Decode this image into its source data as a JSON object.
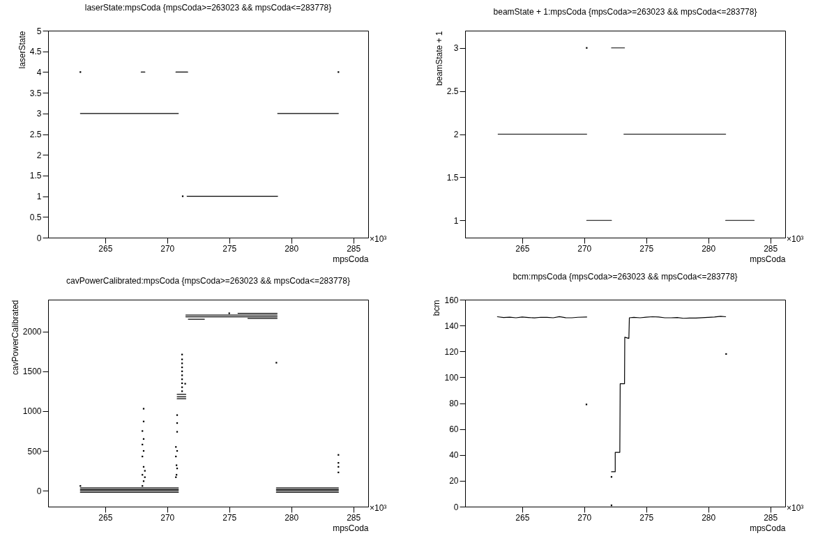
{
  "chart_data": [
    {
      "type": "scatter",
      "title": "laserState:mpsCoda {mpsCoda>=263023 && mpsCoda<=283778}",
      "xlabel": "mpsCoda",
      "ylabel": "laserState",
      "xlim": [
        260.4,
        286.2
      ],
      "xticks": [
        265,
        270,
        275,
        280,
        285
      ],
      "ylim": [
        0,
        5
      ],
      "yticks": [
        0,
        0.5,
        1,
        1.5,
        2,
        2.5,
        3,
        3.5,
        4,
        4.5,
        5
      ],
      "grid": false,
      "annotations": [
        "×10³"
      ],
      "series": [
        {
          "type": "line",
          "color": "#000000",
          "x": [
            263.0,
            270.9
          ],
          "values": [
            3,
            3
          ]
        },
        {
          "type": "line",
          "color": "#000000",
          "x": [
            267.9,
            268.2
          ],
          "values": [
            4,
            4
          ]
        },
        {
          "type": "line",
          "color": "#000000",
          "x": [
            270.7,
            271.65
          ],
          "values": [
            4,
            4
          ]
        },
        {
          "color": "#000000",
          "x": [
            271.25
          ],
          "values": [
            1
          ]
        },
        {
          "type": "line",
          "color": "#000000",
          "x": [
            271.6,
            278.9
          ],
          "values": [
            1,
            1
          ]
        },
        {
          "type": "line",
          "color": "#000000",
          "x": [
            278.9,
            283.8
          ],
          "values": [
            3,
            3
          ]
        },
        {
          "color": "#000000",
          "x": [
            263.0,
            283.8
          ],
          "values": [
            4,
            4
          ]
        }
      ]
    },
    {
      "type": "scatter",
      "title": "beamState + 1:mpsCoda {mpsCoda>=263023 && mpsCoda<=283778}",
      "xlabel": "mpsCoda",
      "ylabel": "beamState + 1",
      "xlim": [
        260.4,
        286.2
      ],
      "xticks": [
        265,
        270,
        275,
        280,
        285
      ],
      "ylim": [
        0.8,
        3.2
      ],
      "yticks": [
        1,
        1.5,
        2,
        2.5,
        3
      ],
      "grid": false,
      "annotations": [
        "×10³"
      ],
      "series": [
        {
          "type": "line",
          "color": "#000000",
          "x": [
            263.06,
            270.2
          ],
          "values": [
            2,
            2
          ]
        },
        {
          "type": "line",
          "color": "#000000",
          "x": [
            270.2,
            272.2
          ],
          "values": [
            1,
            1
          ]
        },
        {
          "type": "line",
          "color": "#000000",
          "x": [
            272.2,
            273.25
          ],
          "values": [
            3,
            3
          ]
        },
        {
          "type": "line",
          "color": "#000000",
          "x": [
            273.2,
            281.4
          ],
          "values": [
            2,
            2
          ]
        },
        {
          "type": "line",
          "color": "#000000",
          "x": [
            281.4,
            283.7
          ],
          "values": [
            1,
            1
          ]
        },
        {
          "color": "#000000",
          "x": [
            270.2
          ],
          "values": [
            3
          ]
        }
      ]
    },
    {
      "type": "scatter",
      "title": "cavPowerCalibrated:mpsCoda {mpsCoda>=263023 && mpsCoda<=283778}",
      "xlabel": "mpsCoda",
      "ylabel": "cavPowerCalibrated",
      "xlim": [
        260.4,
        286.2
      ],
      "xticks": [
        265,
        270,
        275,
        280,
        285
      ],
      "ylim": [
        -200,
        2400
      ],
      "yticks": [
        0,
        500,
        1000,
        1500,
        2000
      ],
      "grid": false,
      "annotations": [
        "×10³"
      ],
      "series": [
        {
          "type": "line",
          "color": "#000000",
          "x": [
            263.0,
            270.9
          ],
          "values": [
            35,
            35
          ]
        },
        {
          "type": "line",
          "color": "#000000",
          "x": [
            263.0,
            270.9
          ],
          "values": [
            15,
            15
          ]
        },
        {
          "type": "line",
          "color": "#000000",
          "x": [
            263.0,
            270.9
          ],
          "values": [
            0,
            0
          ]
        },
        {
          "type": "line",
          "color": "#000000",
          "x": [
            263.0,
            270.9
          ],
          "values": [
            -20,
            -20
          ]
        },
        {
          "type": "line",
          "color": "#000000",
          "x": [
            278.8,
            283.8
          ],
          "values": [
            35,
            35
          ]
        },
        {
          "type": "line",
          "color": "#000000",
          "x": [
            278.8,
            283.8
          ],
          "values": [
            15,
            15
          ]
        },
        {
          "type": "line",
          "color": "#000000",
          "x": [
            278.8,
            283.8
          ],
          "values": [
            0,
            0
          ]
        },
        {
          "type": "line",
          "color": "#000000",
          "x": [
            278.8,
            283.8
          ],
          "values": [
            -20,
            -20
          ]
        },
        {
          "type": "line",
          "color": "#000000",
          "x": [
            270.8,
            271.5
          ],
          "values": [
            1210,
            1210
          ]
        },
        {
          "type": "line",
          "color": "#000000",
          "x": [
            270.8,
            271.5
          ],
          "values": [
            1180,
            1180
          ]
        },
        {
          "type": "line",
          "color": "#000000",
          "x": [
            270.8,
            271.5
          ],
          "values": [
            1155,
            1155
          ]
        },
        {
          "type": "line",
          "color": "#000000",
          "x": [
            271.5,
            278.86
          ],
          "values": [
            2207,
            2207
          ]
        },
        {
          "type": "line",
          "color": "#000000",
          "x": [
            271.5,
            278.86
          ],
          "values": [
            2185,
            2185
          ]
        },
        {
          "type": "line",
          "color": "#000000",
          "x": [
            275.7,
            278.86
          ],
          "values": [
            2229,
            2229
          ]
        },
        {
          "type": "line",
          "color": "#000000",
          "x": [
            271.7,
            273.0
          ],
          "values": [
            2154,
            2154
          ]
        },
        {
          "type": "line",
          "color": "#000000",
          "x": [
            276.5,
            278.86
          ],
          "values": [
            2165,
            2165
          ]
        },
        {
          "color": "#000000",
          "x": [
            263.0,
            268.0,
            268.1,
            268.0,
            268.1,
            268.0,
            268.1,
            268.0,
            268.1,
            268.0,
            268.1,
            268.1,
            268.2,
            268.2,
            270.7,
            270.75,
            270.8,
            270.75,
            270.7,
            270.8,
            270.7,
            270.8,
            270.8,
            270.8,
            271.2,
            271.2,
            271.2,
            271.2,
            271.2,
            271.2,
            271.2,
            271.2,
            271.2,
            271.2,
            271.45,
            278.8,
            275.0,
            283.8,
            283.8,
            283.8,
            283.8
          ],
          "values": [
            60,
            60,
            120,
            200,
            300,
            430,
            500,
            580,
            650,
            750,
            870,
            1030,
            250,
            170,
            170,
            200,
            280,
            320,
            430,
            500,
            550,
            740,
            850,
            950,
            1250,
            1300,
            1350,
            1400,
            1450,
            1500,
            1550,
            1600,
            1650,
            1711,
            1344,
            1608,
            2229,
            450,
            350,
            300,
            230
          ]
        }
      ]
    },
    {
      "type": "scatter",
      "title": "bcm:mpsCoda {mpsCoda>=263023 && mpsCoda<=283778}",
      "xlabel": "mpsCoda",
      "ylabel": "bcm",
      "xlim": [
        260.4,
        286.2
      ],
      "xticks": [
        265,
        270,
        275,
        280,
        285
      ],
      "ylim": [
        0,
        160
      ],
      "yticks": [
        0,
        20,
        40,
        60,
        80,
        100,
        120,
        140,
        160
      ],
      "grid": false,
      "annotations": [
        "×10³"
      ],
      "series": [
        {
          "type": "line",
          "color": "#000000",
          "x": [
            263.0,
            263.5,
            264,
            264.5,
            265,
            265.5,
            266,
            266.5,
            267,
            267.5,
            268,
            268.5,
            269,
            269.5,
            270.2
          ],
          "values": [
            146.8,
            146.2,
            146.5,
            146.0,
            146.6,
            146.2,
            145.9,
            146.4,
            146.3,
            146.0,
            146.9,
            146.1,
            146.0,
            146.4,
            146.6
          ]
        },
        {
          "type": "line",
          "color": "#000000",
          "x": [
            272.2,
            272.5,
            272.5,
            272.87,
            272.9,
            273.25,
            273.27,
            273.6,
            273.64,
            274,
            274.5,
            275,
            275.5,
            276,
            276.5,
            277,
            277.5,
            278,
            278.5,
            279,
            279.5,
            280,
            280.5,
            281,
            281.4
          ],
          "values": [
            27,
            27,
            42,
            42,
            95,
            95,
            131,
            130,
            146,
            146.3,
            146.0,
            146.5,
            146.8,
            146.6,
            146.0,
            146.0,
            146.2,
            145.6,
            145.8,
            145.8,
            146.1,
            146.3,
            146.6,
            147.1,
            146.8
          ]
        },
        {
          "color": "#000000",
          "x": [
            270.18,
            272.2,
            272.2,
            281.44
          ],
          "values": [
            79,
            1,
            23,
            118
          ]
        }
      ]
    }
  ]
}
